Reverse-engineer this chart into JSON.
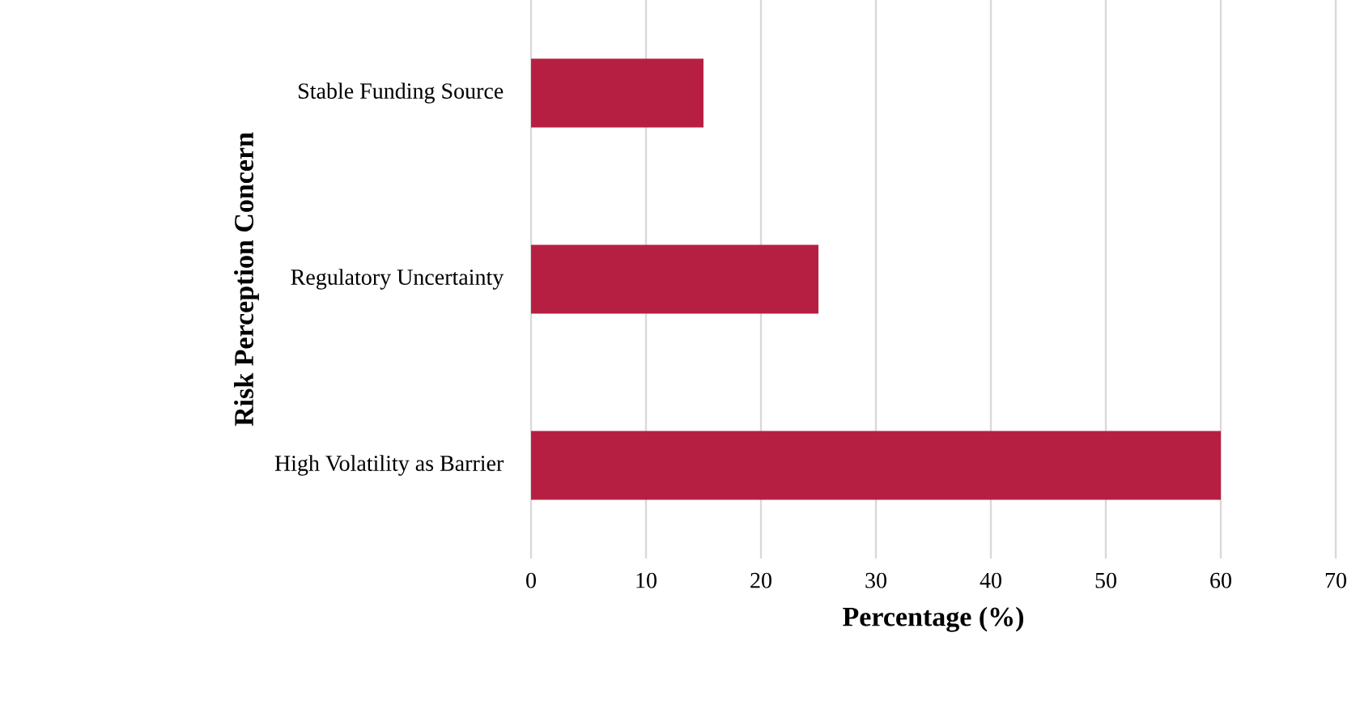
{
  "chart_data": {
    "type": "bar",
    "orientation": "horizontal",
    "xlabel": "Percentage (%)",
    "ylabel": "Risk Perception Concern",
    "categories": [
      "Stable Funding Source",
      "Regulatory Uncertainty",
      "High Volatility as Barrier"
    ],
    "values": [
      15,
      25,
      60
    ],
    "color": "#b71f42",
    "xlim": [
      0,
      70
    ],
    "xticks": [
      0,
      10,
      20,
      30,
      40,
      50,
      60,
      70
    ],
    "grid": "x"
  }
}
